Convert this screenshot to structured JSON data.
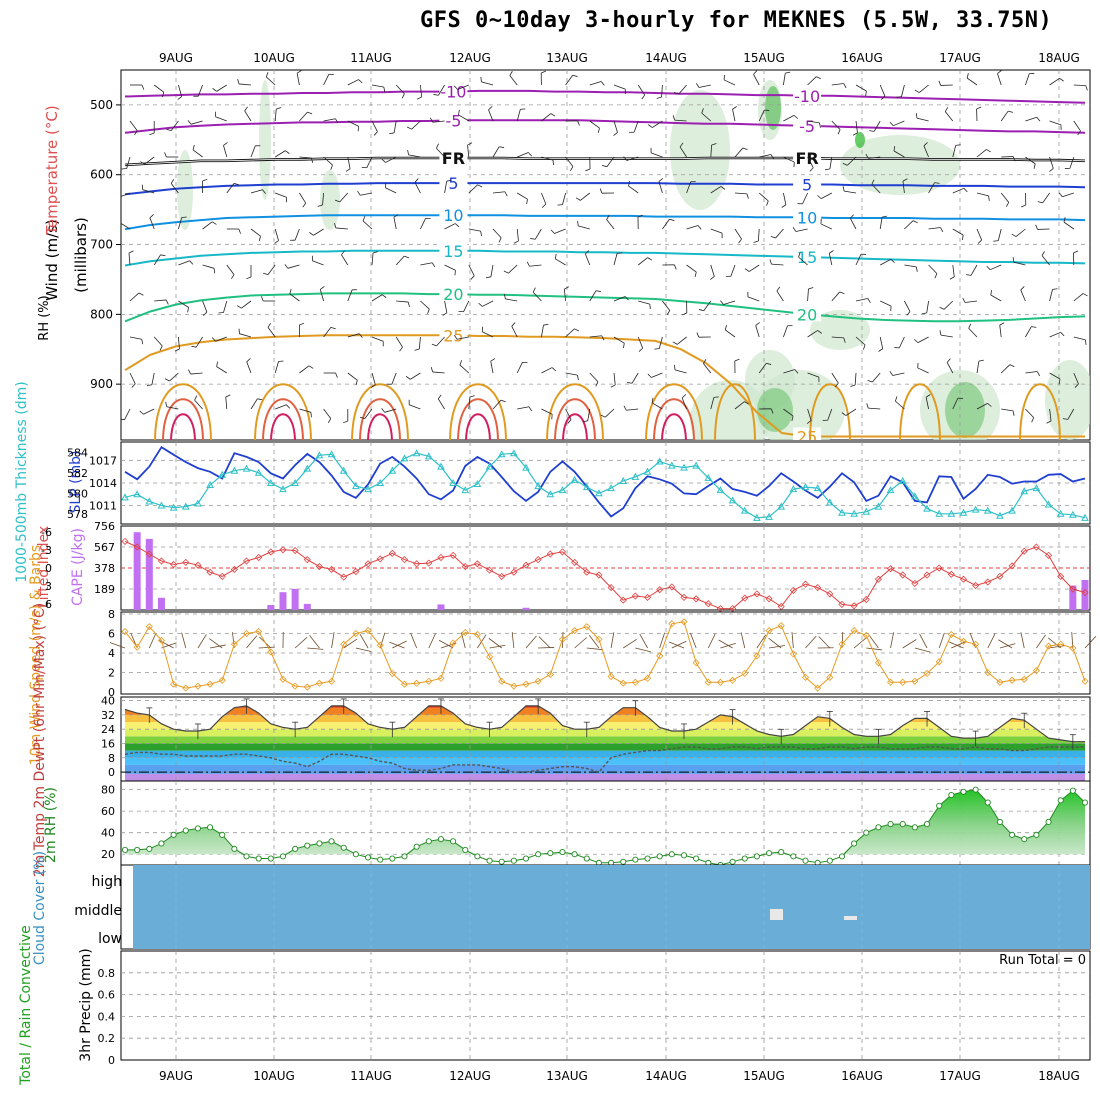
{
  "title": "GFS 0~10day 3-hourly for MEKNES (5.5W, 33.75N)",
  "dates": [
    "9AUG",
    "10AUG",
    "11AUG",
    "12AUG",
    "13AUG",
    "14AUG",
    "15AUG",
    "16AUG",
    "17AUG",
    "18AUG"
  ],
  "colors": {
    "grid": "#a0a0a0",
    "rh_green": "#2e9e3e",
    "slp": "#1f3fd0",
    "thick": "#2fc0c8",
    "li": "#e04040",
    "cape": "#c070f0",
    "wind10": "#e89a20",
    "barb": "#6b4a2a",
    "rh2m": "#208a20",
    "cloud": "#6aaed8",
    "precip_rain": "#22aa22",
    "precip_conv": "#e02020",
    "cloud_gap": "#e8e8e8"
  },
  "chart_data": [
    {
      "type": "contour",
      "name": "upper-air",
      "panel_labels": {
        "y_label": "(millibars)",
        "wind": "Wind (m/s)",
        "temp": "Temperature (°C)",
        "rh": "RH (%)"
      },
      "ylim": [
        450,
        980
      ],
      "yticks": [
        500,
        600,
        700,
        800,
        900
      ],
      "temp_contours": [
        {
          "label": "-10",
          "color": "#9b1fb0",
          "p": [
            488,
            487,
            486,
            485,
            485,
            484,
            484,
            483,
            483,
            482,
            482,
            481,
            481,
            481,
            480,
            480,
            480,
            481,
            481,
            482,
            482,
            483,
            484,
            484,
            485,
            486,
            486,
            487,
            487,
            488,
            489,
            490,
            491,
            492,
            493,
            494,
            495,
            496,
            497
          ]
        },
        {
          "label": "-5",
          "color": "#9b1fb0",
          "p": [
            540,
            536,
            532,
            530,
            528,
            527,
            526,
            525,
            525,
            524,
            524,
            523,
            523,
            522,
            522,
            522,
            522,
            522,
            522,
            523,
            524,
            525,
            526,
            527,
            527,
            528,
            529,
            530,
            531,
            532,
            533,
            534,
            535,
            536,
            537,
            538,
            538,
            539,
            540
          ]
        },
        {
          "label": "FR",
          "color": "#111111",
          "p": [
            586,
            584,
            582,
            580,
            580,
            579,
            578,
            578,
            577,
            577,
            576,
            576,
            576,
            576,
            576,
            576,
            577,
            577,
            577,
            577,
            577,
            577,
            577,
            576,
            576,
            576,
            576,
            576,
            577,
            577,
            577,
            577,
            578,
            578,
            578,
            578,
            579,
            579,
            580
          ]
        },
        {
          "label": "5",
          "color": "#1f3fd0",
          "p": [
            628,
            624,
            620,
            618,
            616,
            615,
            614,
            614,
            613,
            613,
            612,
            612,
            612,
            612,
            612,
            612,
            612,
            612,
            612,
            612,
            612,
            612,
            613,
            613,
            613,
            614,
            614,
            614,
            614,
            615,
            615,
            615,
            616,
            616,
            616,
            617,
            617,
            617,
            618
          ]
        },
        {
          "label": "10",
          "color": "#1090e0",
          "p": [
            678,
            672,
            668,
            665,
            662,
            661,
            660,
            659,
            658,
            658,
            658,
            658,
            658,
            658,
            658,
            658,
            659,
            659,
            659,
            659,
            659,
            660,
            660,
            660,
            660,
            661,
            661,
            661,
            662,
            662,
            662,
            662,
            663,
            663,
            663,
            664,
            664,
            664,
            665
          ]
        },
        {
          "label": "15",
          "color": "#17b8c8",
          "p": [
            730,
            724,
            720,
            716,
            714,
            712,
            711,
            710,
            710,
            709,
            709,
            709,
            709,
            709,
            709,
            710,
            710,
            710,
            711,
            711,
            712,
            712,
            713,
            714,
            715,
            716,
            717,
            718,
            719,
            720,
            721,
            722,
            723,
            724,
            725,
            725,
            726,
            726,
            727
          ]
        },
        {
          "label": "20",
          "color": "#1fc080",
          "p": [
            810,
            796,
            786,
            780,
            776,
            773,
            772,
            771,
            770,
            770,
            770,
            770,
            771,
            771,
            772,
            772,
            773,
            774,
            775,
            776,
            777,
            778,
            781,
            784,
            788,
            792,
            796,
            800,
            803,
            806,
            808,
            809,
            810,
            810,
            809,
            808,
            806,
            804,
            803
          ]
        },
        {
          "label": "25",
          "color": "#e09a20",
          "p": [
            880,
            858,
            846,
            840,
            836,
            834,
            832,
            831,
            830,
            830,
            830,
            830,
            830,
            830,
            831,
            831,
            832,
            832,
            833,
            834,
            836,
            838,
            850,
            870,
            900,
            940,
            970,
            975,
            975,
            975,
            975,
            975,
            975,
            975,
            975,
            975,
            975,
            975,
            975
          ]
        }
      ]
    },
    {
      "type": "line",
      "name": "thickness-slp",
      "labels": {
        "left": "1000-500mb Thickness (dm)",
        "right": "SLP (mb)"
      },
      "left_ticks": [
        578,
        580,
        582,
        584
      ],
      "right_ticks": [
        1011,
        1014,
        1017
      ],
      "series": [
        {
          "name": "SLP (mb)",
          "color": "#1f3fd0",
          "ylim": [
            1008.5,
            1019.5
          ],
          "values": [
            1015.5,
            1014.5,
            1016.2,
            1018.8,
            1017.8,
            1016.8,
            1016.0,
            1015.5,
            1014.6,
            1018.0,
            1017.5,
            1016.8,
            1015.3,
            1014.6,
            1016.4,
            1017.9,
            1016.8,
            1015.0,
            1012.8,
            1012.0,
            1013.8,
            1016.6,
            1017.5,
            1016.2,
            1014.6,
            1012.5,
            1011.8,
            1013.0,
            1016.3,
            1017.5,
            1016.6,
            1014.8,
            1012.9,
            1011.6,
            1012.8,
            1015.5,
            1016.9,
            1015.5,
            1013.5,
            1011.4,
            1009.5,
            1010.6,
            1013.3,
            1014.9,
            1014.5,
            1013.9,
            1012.6,
            1012.5,
            1013.6,
            1014.6,
            1013.2,
            1012.8,
            1012.3,
            1013.6,
            1015.3,
            1014.2,
            1013.0,
            1012.0,
            1013.5,
            1015.3,
            1014.1,
            1011.6,
            1012.3,
            1014.9,
            1014.1,
            1011.6,
            1011.4,
            1014.9,
            1014.8,
            1011.9,
            1013.2,
            1015.1,
            1014.8,
            1013.9,
            1014.2,
            1014.2,
            1015.1,
            1015.2,
            1014.2,
            1014.6
          ]
        },
        {
          "name": "Thickness (dm)",
          "color": "#2fc0c8",
          "ylim": [
            577.0,
            585.0
          ],
          "values": [
            579.6,
            579.9,
            579.2,
            578.8,
            578.6,
            578.7,
            579.0,
            580.8,
            581.8,
            582.2,
            582.4,
            582.0,
            581.0,
            580.4,
            581.0,
            582.4,
            583.7,
            583.8,
            582.2,
            580.7,
            580.4,
            581.0,
            582.2,
            583.4,
            583.9,
            583.6,
            582.6,
            581.0,
            580.3,
            580.9,
            582.6,
            583.8,
            583.9,
            582.5,
            580.7,
            579.9,
            580.3,
            581.3,
            580.6,
            580.0,
            580.5,
            581.2,
            581.6,
            582.1,
            583.1,
            582.7,
            582.5,
            582.7,
            581.5,
            580.3,
            579.3,
            578.3,
            577.6,
            577.7,
            578.7,
            580.4,
            580.6,
            580.5,
            579.1,
            578.1,
            578.0,
            578.2,
            578.7,
            580.3,
            581.2,
            579.7,
            578.5,
            578.0,
            578.0,
            578.1,
            578.4,
            578.3,
            577.8,
            578.3,
            580.2,
            580.5,
            578.9,
            578.0,
            577.9,
            577.6
          ]
        }
      ]
    },
    {
      "type": "bar+line",
      "name": "cape-li",
      "labels": {
        "left": "Lifted Index",
        "right": "CAPE (J/kg)"
      },
      "left_ticks": [
        "-6",
        "-3",
        "0",
        "3",
        "6"
      ],
      "right_ticks": [
        756,
        567,
        378,
        189
      ],
      "cape_ylim": [
        0,
        756
      ],
      "li_ylim": [
        6,
        -6
      ],
      "cape": [
        {
          "i": 1,
          "v": 700
        },
        {
          "i": 2,
          "v": 640
        },
        {
          "i": 3,
          "v": 110
        },
        {
          "i": 12,
          "v": 45
        },
        {
          "i": 13,
          "v": 160
        },
        {
          "i": 14,
          "v": 190
        },
        {
          "i": 15,
          "v": 55
        },
        {
          "i": 26,
          "v": 50
        },
        {
          "i": 33,
          "v": 20
        },
        {
          "i": 78,
          "v": 220
        },
        {
          "i": 79,
          "v": 270
        }
      ],
      "li": [
        -3.8,
        -3.0,
        -2.0,
        -1.0,
        -0.5,
        -0.8,
        -0.4,
        0.6,
        1.2,
        0.2,
        -1.0,
        -1.5,
        -2.3,
        -2.6,
        -2.5,
        -1.2,
        -0.2,
        0.2,
        1.3,
        0.5,
        -0.6,
        -1.3,
        -2.1,
        -1.2,
        -0.6,
        -0.7,
        -1.5,
        -1.8,
        -0.2,
        -0.6,
        0.3,
        1.2,
        0.6,
        -0.4,
        -1.2,
        -2.0,
        -2.3,
        -0.8,
        0.6,
        1.0,
        2.8,
        4.6,
        4.0,
        4.2,
        3.1,
        2.7,
        4.2,
        4.4,
        5.1,
        5.8,
        5.8,
        4.3,
        3.7,
        4.4,
        5.5,
        3.2,
        2.3,
        2.8,
        3.7,
        5.2,
        5.4,
        4.5,
        1.6,
        0.1,
        1.0,
        2.2,
        1.0,
        0.0,
        0.9,
        1.6,
        2.5,
        2.0,
        1.2,
        -0.3,
        -2.4,
        -3.0,
        -1.8,
        1.2,
        3.0,
        3.5
      ]
    },
    {
      "type": "line+barbs",
      "name": "wind10m",
      "labels": {
        "left": "10m Wind Speed (m/s) & Barbs"
      },
      "yticks": [
        0,
        2,
        4,
        6,
        8
      ],
      "ylim": [
        0,
        8
      ],
      "values": [
        6.2,
        4.6,
        6.7,
        5.3,
        0.8,
        0.4,
        0.6,
        0.8,
        1.2,
        4.9,
        6.0,
        6.2,
        4.1,
        1.3,
        0.6,
        0.5,
        0.9,
        1.1,
        4.9,
        6.0,
        6.3,
        4.8,
        1.9,
        0.8,
        0.9,
        1.1,
        1.4,
        5.0,
        6.1,
        5.9,
        3.6,
        1.1,
        0.6,
        0.8,
        1.1,
        1.8,
        5.4,
        6.3,
        6.7,
        5.4,
        1.6,
        0.9,
        1.0,
        1.4,
        3.7,
        7.0,
        7.2,
        3.0,
        1.0,
        1.0,
        1.2,
        1.9,
        3.7,
        6.3,
        6.8,
        3.9,
        1.5,
        0.4,
        1.5,
        4.9,
        6.3,
        5.8,
        3.0,
        1.0,
        1.0,
        1.1,
        1.9,
        3.1,
        5.9,
        5.2,
        4.9,
        2.0,
        1.0,
        1.2,
        1.3,
        2.2,
        4.7,
        4.9,
        4.5,
        1.1
      ]
    },
    {
      "type": "area",
      "name": "temp2m",
      "labels": {
        "left": "2m Temp 2m DewPt (6hr Min/Max) (°C)"
      },
      "yticks": [
        0,
        8,
        16,
        24,
        32,
        40
      ],
      "ylim": [
        -5,
        42
      ],
      "temp": [
        35,
        33,
        32,
        27,
        24,
        23,
        23,
        24,
        31,
        36,
        37,
        33,
        27,
        25,
        24,
        25,
        31,
        37,
        37,
        33,
        27,
        25,
        24,
        25,
        31,
        37,
        37,
        33,
        27,
        25,
        24,
        25,
        31,
        37,
        37,
        33,
        26,
        24,
        24,
        25,
        31,
        36,
        36,
        31,
        25,
        23,
        23,
        24,
        28,
        32,
        31,
        27,
        23,
        21,
        20,
        21,
        26,
        31,
        30,
        25,
        21,
        20,
        20,
        21,
        26,
        30,
        30,
        25,
        20,
        19,
        19,
        20,
        25,
        30,
        29,
        24,
        19,
        18,
        17,
        17
      ],
      "dewpt": [
        10,
        11,
        11,
        10,
        10,
        9,
        9,
        9,
        9,
        10,
        10,
        9,
        8,
        6,
        5,
        3,
        6,
        10,
        10,
        9,
        8,
        6,
        5,
        2,
        1,
        1,
        2,
        4,
        4,
        4,
        3,
        2,
        0,
        0,
        1,
        2,
        3,
        3,
        2,
        0,
        8,
        10,
        11,
        12,
        12,
        13,
        14,
        14,
        13,
        13,
        14,
        14,
        13,
        14,
        14,
        14,
        13,
        13,
        14,
        14,
        13,
        14,
        14,
        13,
        13,
        13,
        14,
        14,
        13,
        13,
        14,
        13,
        13,
        12,
        12,
        13,
        14,
        14,
        14,
        14
      ]
    },
    {
      "type": "area",
      "name": "rh2m",
      "labels": {
        "left": "2m RH (%)"
      },
      "yticks": [
        20,
        40,
        60,
        80
      ],
      "ylim": [
        10,
        88
      ],
      "values": [
        24,
        24,
        25,
        30,
        38,
        42,
        44,
        45,
        38,
        25,
        18,
        16,
        16,
        18,
        25,
        28,
        30,
        32,
        26,
        20,
        17,
        15,
        16,
        18,
        27,
        32,
        34,
        32,
        24,
        18,
        14,
        13,
        14,
        16,
        20,
        21,
        22,
        20,
        16,
        12,
        12,
        13,
        15,
        16,
        18,
        20,
        19,
        16,
        12,
        10,
        13,
        16,
        18,
        21,
        22,
        18,
        14,
        12,
        14,
        18,
        30,
        40,
        45,
        48,
        48,
        45,
        48,
        65,
        75,
        78,
        80,
        68,
        50,
        38,
        34,
        38,
        50,
        70,
        79,
        68
      ]
    },
    {
      "type": "area",
      "name": "cloud",
      "labels": {
        "left": "Cloud Cover (%)",
        "levels": [
          "high",
          "middle",
          "low"
        ]
      }
    },
    {
      "type": "bar",
      "name": "precip",
      "labels": {
        "left": "Total / Rain Convective",
        "unit": "3hr Precip (mm)",
        "run_total": "Run Total = 0"
      },
      "yticks": [
        "0",
        "0.2",
        "0.4",
        "0.6",
        "0.8"
      ],
      "ylim": [
        0,
        1
      ]
    }
  ]
}
